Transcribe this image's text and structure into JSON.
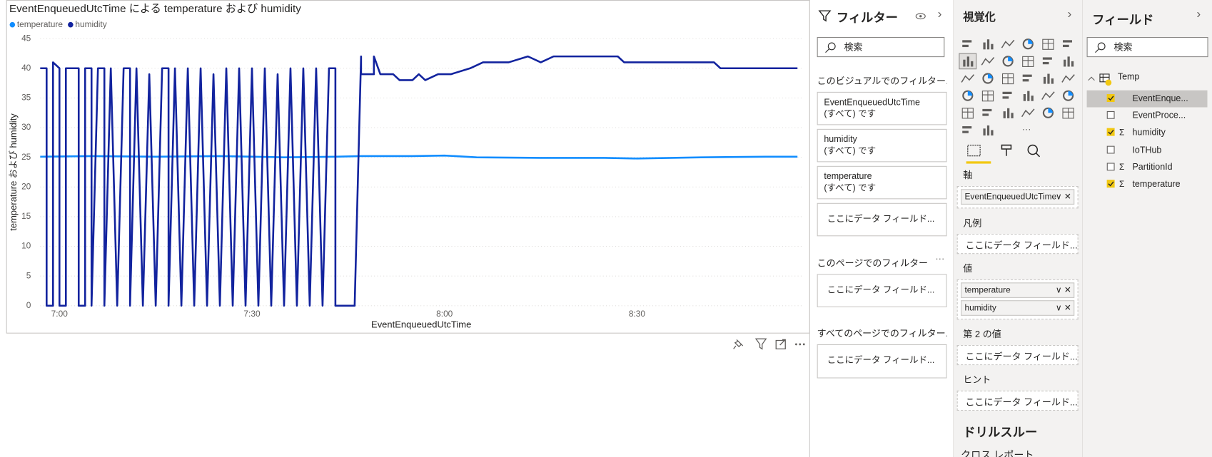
{
  "chart_data": {
    "type": "line",
    "title": "EventEnqueuedUtcTime による temperature および humidity",
    "x_label": "EventEnqueuedUtcTime",
    "y_label": "temperature および humidity",
    "legend": "top-left",
    "grid": true,
    "xlim": [
      "6:57",
      "8:56"
    ],
    "xticks": [
      "7:00",
      "7:30",
      "8:00",
      "8:30"
    ],
    "ylim": [
      0,
      45
    ],
    "yticks": [
      0,
      5,
      10,
      15,
      20,
      25,
      30,
      35,
      40,
      45
    ],
    "series": [
      {
        "name": "temperature",
        "color": "#118dff",
        "x": [
          "6:57",
          "7:05",
          "7:15",
          "7:25",
          "7:35",
          "7:43",
          "7:47",
          "7:55",
          "8:00",
          "8:05",
          "8:15",
          "8:25",
          "8:30",
          "8:40",
          "8:50",
          "8:55"
        ],
        "values": [
          25.1,
          25.2,
          25.1,
          25.2,
          25.0,
          25.1,
          25.2,
          25.2,
          25.3,
          25.0,
          24.9,
          24.9,
          24.8,
          25.0,
          25.1,
          25.1
        ]
      },
      {
        "name": "humidity",
        "color": "#12239e",
        "x": [
          "6:57",
          "6:58",
          "6:58",
          "6:59",
          "6:59",
          "7:00",
          "7:00",
          "7:01",
          "7:01",
          "7:02",
          "7:03",
          "7:03",
          "7:04",
          "7:04",
          "7:05",
          "7:05",
          "7:06",
          "7:07",
          "7:07",
          "7:08",
          "7:09",
          "7:10",
          "7:11",
          "7:11",
          "7:12",
          "7:13",
          "7:14",
          "7:15",
          "7:16",
          "7:17",
          "7:17",
          "7:18",
          "7:19",
          "7:20",
          "7:21",
          "7:22",
          "7:23",
          "7:24",
          "7:25",
          "7:26",
          "7:27",
          "7:28",
          "7:29",
          "7:30",
          "7:31",
          "7:32",
          "7:33",
          "7:34",
          "7:35",
          "7:36",
          "7:37",
          "7:38",
          "7:39",
          "7:40",
          "7:41",
          "7:42",
          "7:43",
          "7:43",
          "7:46",
          "7:47",
          "7:47",
          "7:49",
          "7:49",
          "7:50",
          "7:52",
          "7:53",
          "7:55",
          "7:56",
          "7:57",
          "7:59",
          "8:01",
          "8:04",
          "8:06",
          "8:10",
          "8:13",
          "8:15",
          "8:17",
          "8:27",
          "8:28",
          "8:42",
          "8:43",
          "8:55"
        ],
        "values": [
          40,
          40,
          0,
          0,
          41,
          40,
          0,
          0,
          40,
          40,
          40,
          0,
          0,
          40,
          40,
          0,
          40,
          40,
          0,
          40,
          0,
          40,
          40,
          0,
          40,
          0,
          39,
          0,
          40,
          40,
          0,
          40,
          0,
          40,
          0,
          40,
          0,
          39,
          0,
          40,
          0,
          40,
          0,
          40,
          0,
          40,
          0,
          39,
          0,
          40,
          0,
          40,
          0,
          40,
          0,
          40,
          40,
          0,
          0,
          42,
          39,
          39,
          42,
          39,
          39,
          38,
          38,
          39,
          38,
          39,
          39,
          40,
          41,
          41,
          42,
          41,
          42,
          42,
          41,
          41,
          40,
          40
        ]
      }
    ]
  },
  "filters": {
    "title": "フィルター",
    "search": "検索",
    "visual_section": "このビジュアルでのフィルター...",
    "visual_cards": [
      {
        "field": "EventEnqueuedUtcTime",
        "state": "(すべて) です"
      },
      {
        "field": "humidity",
        "state": "(すべて) です"
      },
      {
        "field": "temperature",
        "state": "(すべて) です"
      }
    ],
    "visual_drop": "ここにデータ フィールド...",
    "page_section": "このページでのフィルター",
    "page_drop": "ここにデータ フィールド...",
    "all_section": "すべてのページでのフィルター...",
    "all_drop": "ここにデータ フィールド..."
  },
  "visualizations": {
    "title": "視覚化",
    "wells": [
      {
        "label": "軸",
        "fields": [
          "EventEnqueuedUtcTime"
        ]
      },
      {
        "label": "凡例",
        "placeholder": "ここにデータ フィールド..."
      },
      {
        "label": "値",
        "fields": [
          "temperature",
          "humidity"
        ]
      },
      {
        "label": "第 2 の値",
        "placeholder": "ここにデータ フィールド..."
      },
      {
        "label": "ヒント",
        "placeholder": "ここにデータ フィールド..."
      }
    ],
    "drillthrough": "ドリルスルー",
    "cross_report": "クロス レポート"
  },
  "fields": {
    "title": "フィールド",
    "search": "検索",
    "table": "Temp",
    "items": [
      {
        "name": "EventEnque...",
        "checked": true,
        "aggregate": false
      },
      {
        "name": "EventProce...",
        "checked": false,
        "aggregate": false
      },
      {
        "name": "humidity",
        "checked": true,
        "aggregate": true
      },
      {
        "name": "IoTHub",
        "checked": false,
        "aggregate": false
      },
      {
        "name": "PartitionId",
        "checked": false,
        "aggregate": true
      },
      {
        "name": "temperature",
        "checked": true,
        "aggregate": true
      }
    ]
  }
}
